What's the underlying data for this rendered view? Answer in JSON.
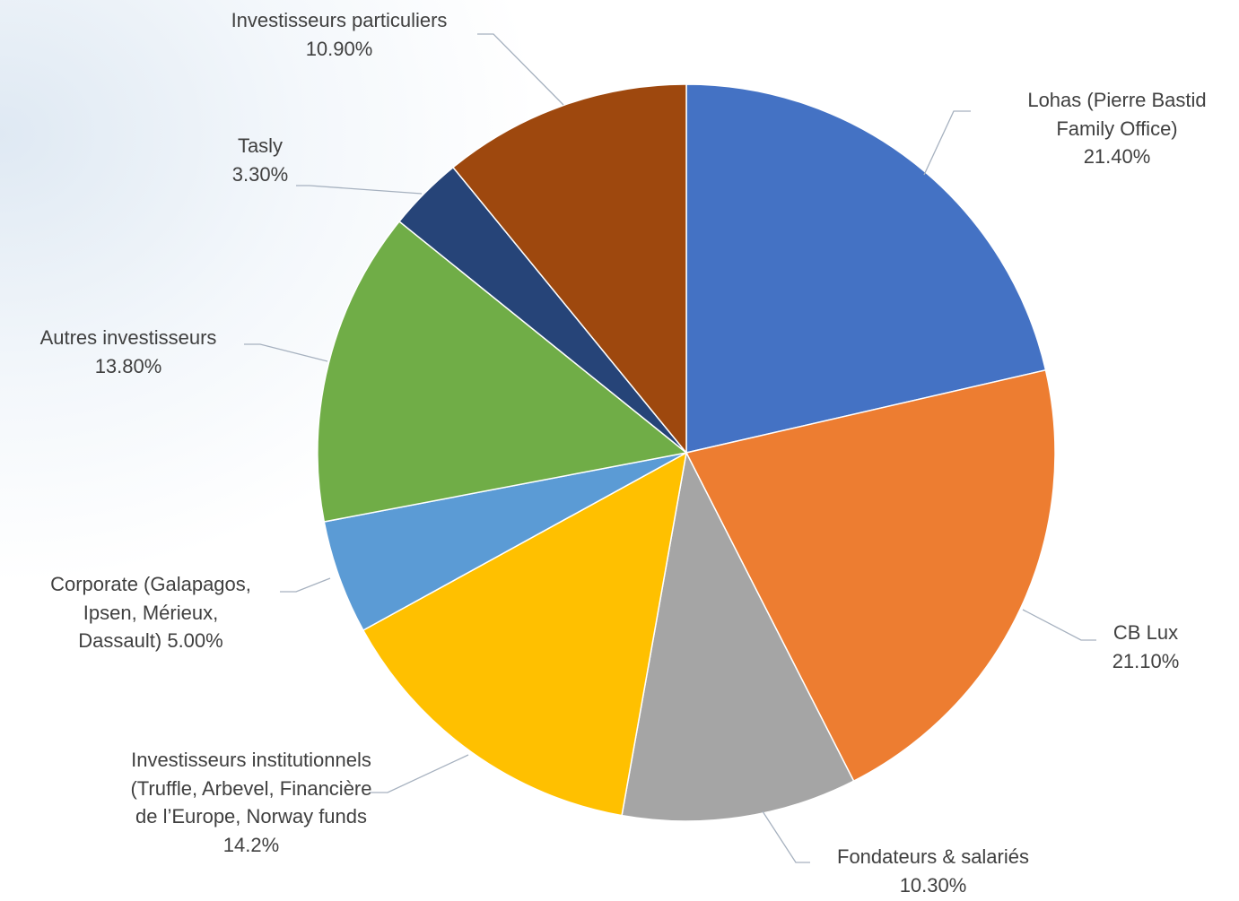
{
  "chart_data": {
    "type": "pie",
    "categories": [
      "Lohas (Pierre Bastid Family Office)",
      "CB Lux",
      "Fondateurs & salariés",
      "Investisseurs institutionnels (Truffle, Arbevel, Financière de l’Europe, Norway funds",
      "Corporate (Galapagos, Ipsen, Mérieux, Dassault)",
      "Autres investisseurs",
      "Tasly",
      "Investisseurs particuliers"
    ],
    "values": [
      21.4,
      21.1,
      10.3,
      14.2,
      5.0,
      13.8,
      3.3,
      10.9
    ],
    "value_labels": [
      "21.40%",
      "21.10%",
      "10.30%",
      "14.2%",
      "5.00%",
      "13.80%",
      "3.30%",
      "10.90%"
    ],
    "colors": [
      "#4472c4",
      "#ed7d31",
      "#a5a5a5",
      "#ffc000",
      "#5b9bd5",
      "#70ad47",
      "#264478",
      "#9e480e"
    ]
  }
}
